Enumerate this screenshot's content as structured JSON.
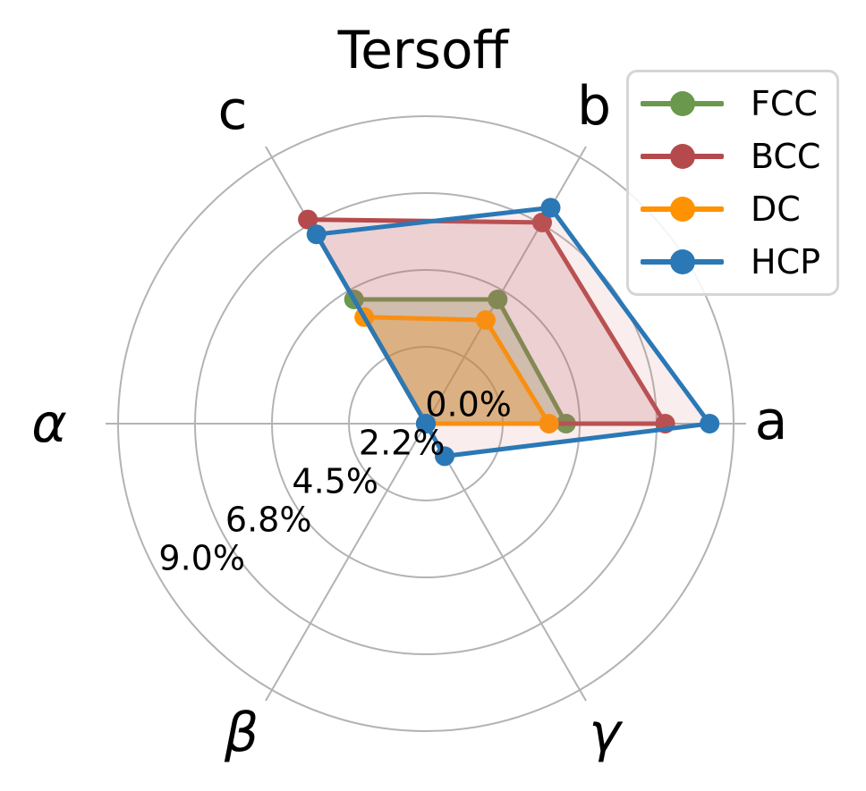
{
  "title": "Tersoff",
  "chart_data": {
    "type": "radar",
    "title": "Tersoff",
    "categories": [
      "a",
      "b",
      "c",
      "α",
      "β",
      "γ"
    ],
    "axis_angles_deg": [
      0,
      60,
      120,
      180,
      240,
      300
    ],
    "rmax": 9.0,
    "grid": true,
    "radial_ticks": {
      "labels": [
        "0.0%",
        "2.2%",
        "4.5%",
        "6.8%",
        "9.0%"
      ],
      "values": [
        0,
        2.25,
        4.5,
        6.75,
        9.0
      ]
    },
    "series": [
      {
        "name": "FCC",
        "color": "#6a994e",
        "fill": "rgba(106,153,78,0.28)",
        "values": [
          4.1,
          4.2,
          4.2,
          0.0,
          0.0,
          0.0
        ]
      },
      {
        "name": "BCC",
        "color": "#b54a4c",
        "fill": "rgba(181,74,76,0.18)",
        "values": [
          7.0,
          6.8,
          6.9,
          0.0,
          0.0,
          0.0
        ]
      },
      {
        "name": "DC",
        "color": "#ff9200",
        "fill": "rgba(255,146,0,0.28)",
        "values": [
          3.6,
          3.5,
          3.6,
          0.0,
          0.0,
          0.0
        ]
      },
      {
        "name": "HCP",
        "color": "#2a78b6",
        "fill": "rgba(213,130,126,0.14)",
        "values": [
          8.3,
          7.3,
          6.4,
          0.0,
          0.0,
          1.1
        ]
      }
    ],
    "legend": {
      "position": "top-right",
      "entries": [
        "FCC",
        "BCC",
        "DC",
        "HCP"
      ]
    }
  },
  "colors": {
    "grid": "#b3b3b3",
    "text": "#000000",
    "legend_border": "#d5d5d5"
  }
}
